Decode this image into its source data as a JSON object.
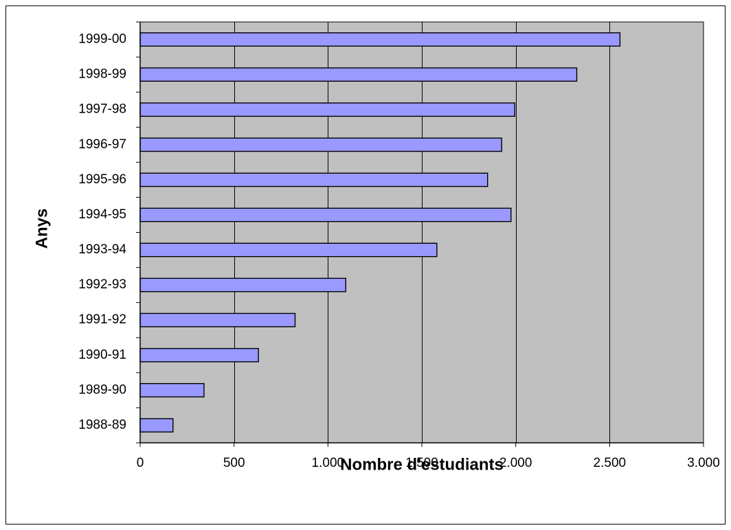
{
  "chart_data": {
    "type": "bar",
    "orientation": "horizontal",
    "categories": [
      "1988-89",
      "1989-90",
      "1990-91",
      "1991-92",
      "1992-93",
      "1993-94",
      "1994-95",
      "1995-96",
      "1996-97",
      "1997-98",
      "1998-99",
      "1999-00"
    ],
    "values": [
      175,
      340,
      630,
      825,
      1095,
      1580,
      1975,
      1850,
      1925,
      1995,
      2325,
      2555
    ],
    "title": "",
    "xlabel": "Nombre d'estudiants",
    "ylabel": "Anys",
    "xlim": [
      0,
      3000
    ],
    "x_ticks": [
      0,
      500,
      1000,
      1500,
      2000,
      2500,
      3000
    ],
    "x_tick_labels": [
      "0",
      "500",
      "1.000",
      "1.500",
      "2.000",
      "2.500",
      "3.000"
    ],
    "grid": "vertical major gridlines",
    "legend": "none",
    "colors": {
      "bar_fill": "#9999ff",
      "bar_stroke": "#000000",
      "plot_background": "#c0c0c0",
      "gridline": "#000000"
    }
  }
}
